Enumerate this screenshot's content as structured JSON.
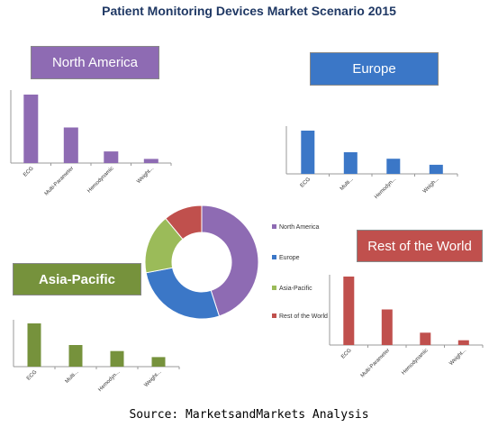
{
  "colors": {
    "north_america": "#8e6bb3",
    "europe": "#3b77c7",
    "asia_pacific": "#76923c",
    "rest_of_world": "#c0504d",
    "donut_asia_pacific": "#9bbb59",
    "title": "#1f3864"
  },
  "chart_data": [
    {
      "type": "pie",
      "title": "Patient Monitoring Devices Market Scenario 2015",
      "source": "Source: MarketsandMarkets Analysis",
      "donut": true,
      "categories": [
        "North America",
        "Europe",
        "Asia-Pacific",
        "Rest of the World"
      ],
      "values": [
        45,
        27,
        17,
        11
      ],
      "legend": "right"
    },
    {
      "type": "bar",
      "region": "North America",
      "categories": [
        "ECG",
        "Multi-Parameter",
        "Hemodynamic",
        "Weight..."
      ],
      "values": [
        100,
        52,
        17,
        6
      ]
    },
    {
      "type": "bar",
      "region": "Europe",
      "categories": [
        "ECG",
        "Multi...",
        "Hemodyn...",
        "Weigh..."
      ],
      "values": [
        100,
        50,
        35,
        21
      ]
    },
    {
      "type": "bar",
      "region": "Asia-Pacific",
      "categories": [
        "ECG",
        "Multi...",
        "Hemodyn...",
        "Weight..."
      ],
      "values": [
        100,
        50,
        36,
        22
      ]
    },
    {
      "type": "bar",
      "region": "Rest of the World",
      "categories": [
        "ECG",
        "Multi-Parameter",
        "Hemodynamic",
        "Weight..."
      ],
      "values": [
        100,
        52,
        18,
        7
      ]
    }
  ]
}
